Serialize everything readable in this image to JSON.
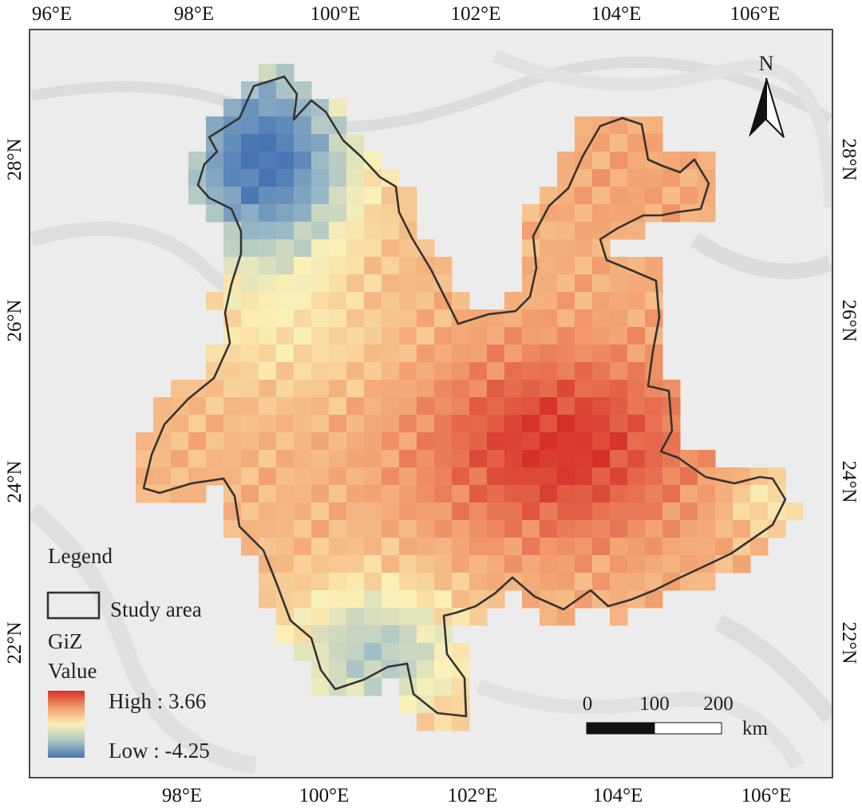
{
  "map": {
    "lon_labels": [
      "96°E",
      "98°E",
      "100°E",
      "102°E",
      "104°E",
      "106°E"
    ],
    "lat_labels": [
      "28°N",
      "26°N",
      "24°N",
      "22°N"
    ],
    "north_label": "N",
    "legend": {
      "title": "Legend",
      "boundary_label": "Study area",
      "layer_name": "GiZ",
      "field_label": "Value",
      "high_label": "High :  3.66",
      "low_label": "Low : -4.25"
    },
    "scale_bar": {
      "labels": [
        "0",
        "100",
        "200"
      ],
      "unit": "km"
    },
    "colors": {
      "high": "#d7302a",
      "mid": "#fbf2b7",
      "low": "#4575b4",
      "boundary": "#333333"
    }
  }
}
